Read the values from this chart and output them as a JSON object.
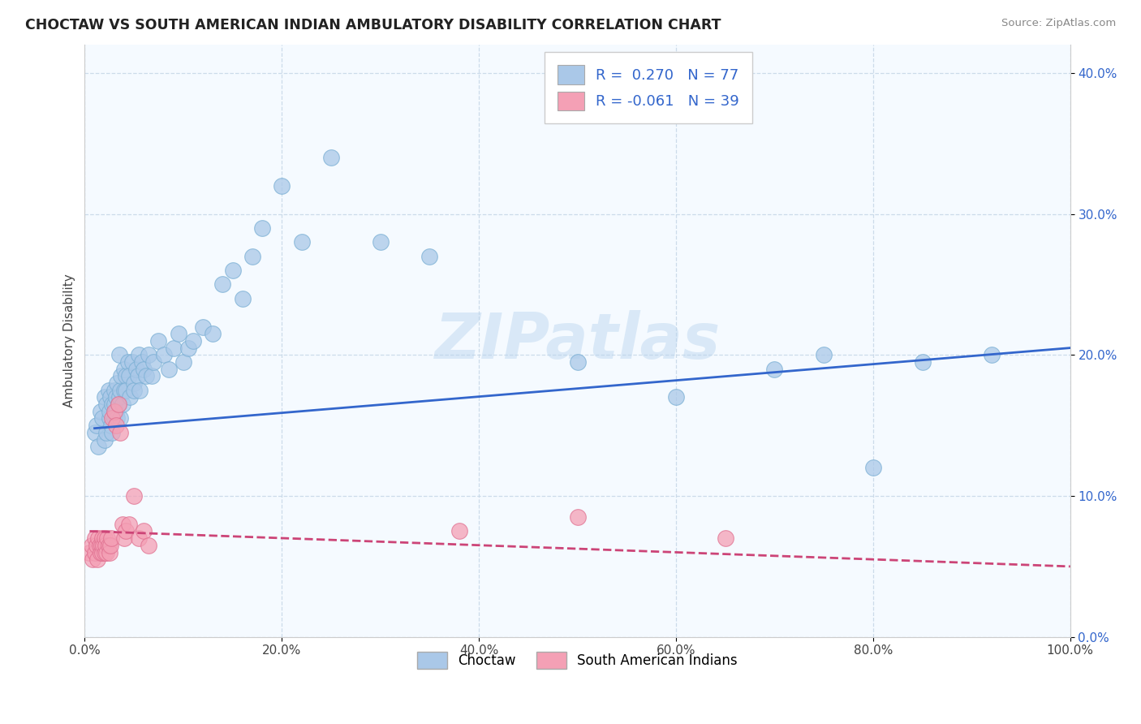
{
  "title": "CHOCTAW VS SOUTH AMERICAN INDIAN AMBULATORY DISABILITY CORRELATION CHART",
  "source": "Source: ZipAtlas.com",
  "ylabel": "Ambulatory Disability",
  "legend_labels": [
    "Choctaw",
    "South American Indians"
  ],
  "choctaw_R": 0.27,
  "choctaw_N": 77,
  "sam_R": -0.061,
  "sam_N": 39,
  "xlim": [
    0.0,
    1.0
  ],
  "ylim": [
    0.0,
    0.42
  ],
  "xticks": [
    0.0,
    0.2,
    0.4,
    0.6,
    0.8,
    1.0
  ],
  "xtick_labels": [
    "0.0%",
    "20.0%",
    "40.0%",
    "60.0%",
    "80.0%",
    "100.0%"
  ],
  "yticks": [
    0.0,
    0.1,
    0.2,
    0.3,
    0.4
  ],
  "ytick_labels": [
    "0.0%",
    "10.0%",
    "20.0%",
    "30.0%",
    "40.0%"
  ],
  "blue_color": "#aac8e8",
  "blue_edge_color": "#7aafd4",
  "blue_line_color": "#3366cc",
  "pink_color": "#f4a0b5",
  "pink_edge_color": "#e07090",
  "pink_line_color": "#cc4477",
  "bg_color": "#f5faff",
  "watermark": "ZIPatlas",
  "choctaw_x": [
    0.01,
    0.012,
    0.014,
    0.016,
    0.018,
    0.02,
    0.02,
    0.022,
    0.022,
    0.024,
    0.025,
    0.025,
    0.026,
    0.027,
    0.028,
    0.028,
    0.03,
    0.03,
    0.03,
    0.032,
    0.032,
    0.033,
    0.033,
    0.034,
    0.035,
    0.035,
    0.036,
    0.036,
    0.037,
    0.038,
    0.04,
    0.04,
    0.042,
    0.042,
    0.044,
    0.045,
    0.046,
    0.048,
    0.05,
    0.05,
    0.052,
    0.054,
    0.055,
    0.056,
    0.058,
    0.06,
    0.062,
    0.065,
    0.068,
    0.07,
    0.075,
    0.08,
    0.085,
    0.09,
    0.095,
    0.1,
    0.105,
    0.11,
    0.12,
    0.13,
    0.14,
    0.15,
    0.16,
    0.17,
    0.18,
    0.2,
    0.22,
    0.25,
    0.3,
    0.35,
    0.5,
    0.6,
    0.7,
    0.75,
    0.8,
    0.85,
    0.92
  ],
  "choctaw_y": [
    0.145,
    0.15,
    0.135,
    0.16,
    0.155,
    0.17,
    0.14,
    0.165,
    0.145,
    0.175,
    0.155,
    0.16,
    0.17,
    0.15,
    0.165,
    0.145,
    0.175,
    0.155,
    0.165,
    0.16,
    0.17,
    0.18,
    0.155,
    0.165,
    0.2,
    0.17,
    0.155,
    0.175,
    0.185,
    0.165,
    0.19,
    0.175,
    0.185,
    0.175,
    0.195,
    0.185,
    0.17,
    0.195,
    0.18,
    0.175,
    0.19,
    0.185,
    0.2,
    0.175,
    0.195,
    0.19,
    0.185,
    0.2,
    0.185,
    0.195,
    0.21,
    0.2,
    0.19,
    0.205,
    0.215,
    0.195,
    0.205,
    0.21,
    0.22,
    0.215,
    0.25,
    0.26,
    0.24,
    0.27,
    0.29,
    0.32,
    0.28,
    0.34,
    0.28,
    0.27,
    0.195,
    0.17,
    0.19,
    0.2,
    0.12,
    0.195,
    0.2
  ],
  "sam_x": [
    0.005,
    0.007,
    0.008,
    0.01,
    0.01,
    0.012,
    0.013,
    0.014,
    0.015,
    0.016,
    0.017,
    0.018,
    0.018,
    0.019,
    0.02,
    0.02,
    0.021,
    0.022,
    0.023,
    0.024,
    0.025,
    0.026,
    0.027,
    0.028,
    0.03,
    0.032,
    0.034,
    0.036,
    0.038,
    0.04,
    0.042,
    0.045,
    0.05,
    0.055,
    0.06,
    0.065,
    0.38,
    0.5,
    0.65
  ],
  "sam_y": [
    0.06,
    0.065,
    0.055,
    0.06,
    0.07,
    0.065,
    0.055,
    0.07,
    0.065,
    0.06,
    0.065,
    0.07,
    0.06,
    0.065,
    0.06,
    0.07,
    0.065,
    0.06,
    0.07,
    0.065,
    0.06,
    0.065,
    0.07,
    0.155,
    0.16,
    0.15,
    0.165,
    0.145,
    0.08,
    0.07,
    0.075,
    0.08,
    0.1,
    0.07,
    0.075,
    0.065,
    0.075,
    0.085,
    0.07
  ],
  "choctaw_trendline_x": [
    0.01,
    1.0
  ],
  "choctaw_trendline_y": [
    0.148,
    0.205
  ],
  "sam_trendline_x": [
    0.005,
    1.0
  ],
  "sam_trendline_y": [
    0.075,
    0.05
  ]
}
